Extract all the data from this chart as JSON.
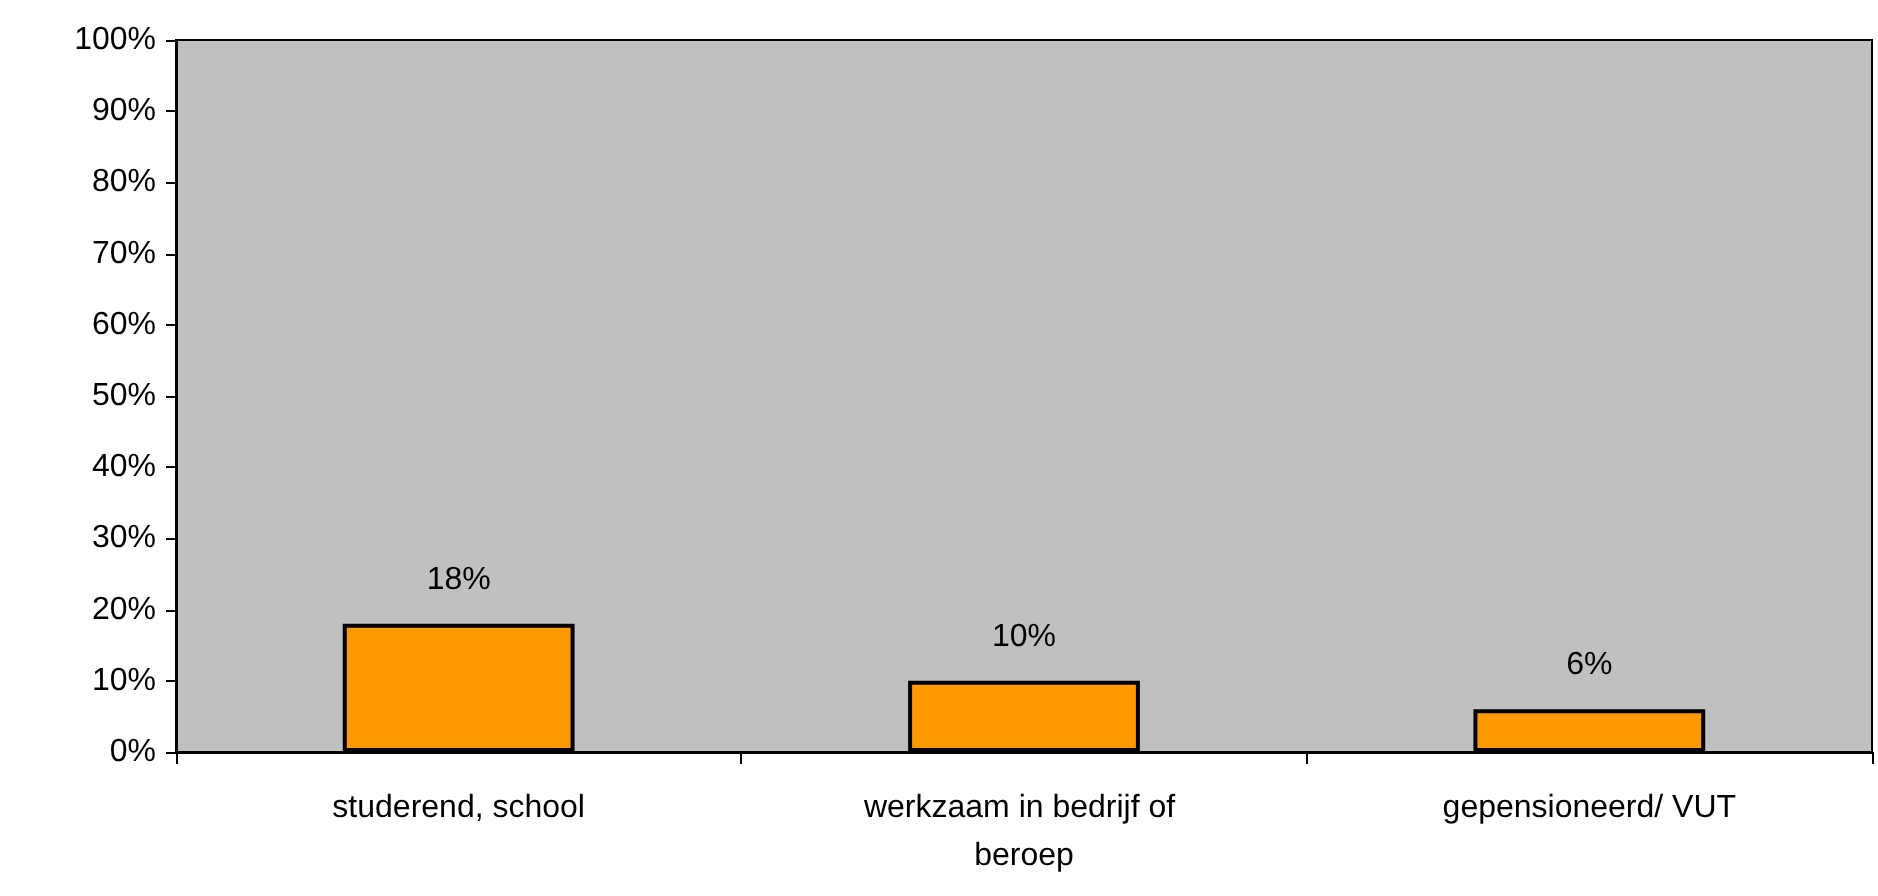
{
  "chart_data": {
    "type": "bar",
    "categories": [
      "studerend, school",
      "werkzaam in bedrijf of beroep",
      "gepensioneerd/ VUT"
    ],
    "values": [
      18,
      10,
      6
    ],
    "color": "#ff9900",
    "value_labels": [
      "18%",
      "10%",
      "6%"
    ],
    "ylim": [
      0,
      100
    ],
    "yticks": [
      {
        "value": 0,
        "label": "0%"
      },
      {
        "value": 10,
        "label": "10%"
      },
      {
        "value": 20,
        "label": "20%"
      },
      {
        "value": 30,
        "label": "30%"
      },
      {
        "value": 40,
        "label": "40%"
      },
      {
        "value": 50,
        "label": "50%"
      },
      {
        "value": 60,
        "label": "60%"
      },
      {
        "value": 70,
        "label": "70%"
      },
      {
        "value": 80,
        "label": "80%"
      },
      {
        "value": 90,
        "label": "90%"
      },
      {
        "value": 100,
        "label": "100%"
      }
    ]
  }
}
